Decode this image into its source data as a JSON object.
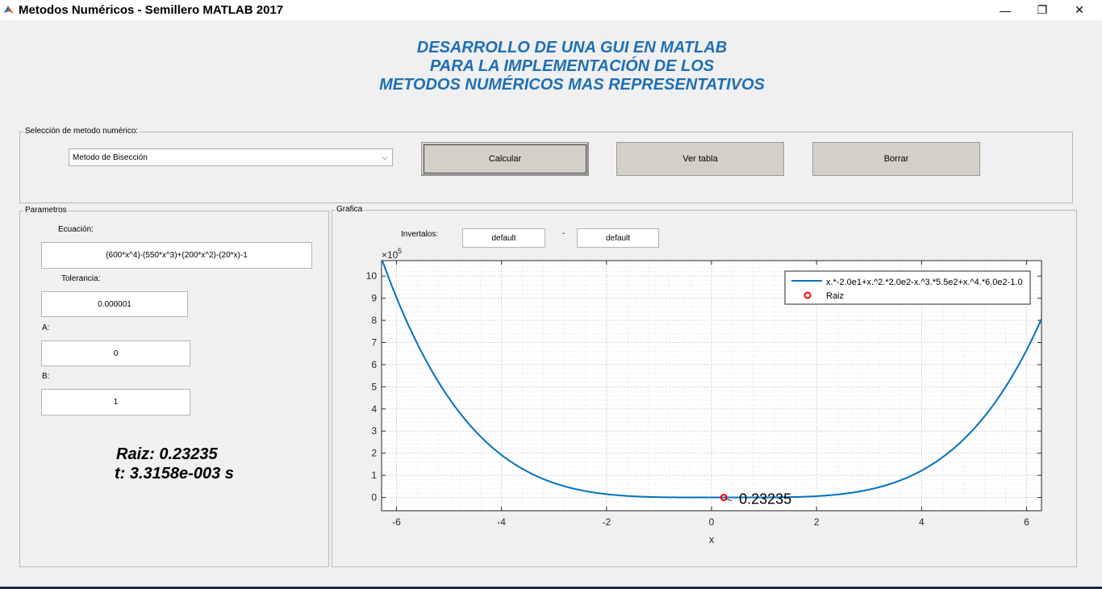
{
  "window": {
    "title": "Metodos Numéricos - Semillero MATLAB 2017",
    "minimize": "—",
    "maximize": "❐",
    "close": "✕"
  },
  "heading": {
    "line1": "DESARROLLO DE UNA GUI EN MATLAB",
    "line2": "PARA LA IMPLEMENTACIÓN DE LOS",
    "line3": "METODOS NUMÉRICOS MAS REPRESENTATIVOS"
  },
  "method_panel": {
    "legend": "Selección de metodo numérico:",
    "selected": "Metodo de Bisección",
    "buttons": {
      "calcular": "Calcular",
      "ver_tabla": "Ver tabla",
      "borrar": "Borrar"
    }
  },
  "params": {
    "legend": "Parametros",
    "ecuacion_label": "Ecuación:",
    "ecuacion": "(600*x^4)-(550*x^3)+(200*x^2)-(20*x)-1",
    "tolerancia_label": "Tolerancia:",
    "tolerancia": "0.000001",
    "a_label": "A:",
    "a": "0",
    "b_label": "B:",
    "b": "1",
    "raiz": "Raiz: 0.23235",
    "tiempo": "t: 3.3158e-003 s"
  },
  "grafica": {
    "legend": "Grafica",
    "intervalos_label": "Invertalos:",
    "from": "default",
    "dash": "-",
    "to": "default"
  },
  "chart_data": {
    "type": "line",
    "xlabel": "x",
    "ylabel": "",
    "exponent": "×10",
    "exponent_power": "5",
    "xlim": [
      -6.2832,
      6.2832
    ],
    "ylim": [
      -0.6,
      10.7
    ],
    "x_ticks": [
      -6,
      -4,
      -2,
      0,
      2,
      4,
      6
    ],
    "y_ticks": [
      0,
      1,
      2,
      3,
      4,
      5,
      6,
      7,
      8,
      9,
      10
    ],
    "y_scale": 100000,
    "grid": true,
    "minor_grid": true,
    "legend_position": "top-right",
    "function_coeffs": {
      "x4": 600,
      "x3": -550,
      "x2": 200,
      "x1": -20,
      "x0": -1
    },
    "series": [
      {
        "name": "x.*-2.0e1+x.^2.*2.0e2-x.^3.*5.5e2+x.^4.*6.0e2-1.0",
        "color": "#0072bd"
      },
      {
        "name": "Raiz",
        "marker": "circle",
        "color": "#ff0000",
        "points": [
          {
            "x": 0.23235,
            "y": 0
          }
        ]
      }
    ],
    "annotation": "0.23235"
  }
}
